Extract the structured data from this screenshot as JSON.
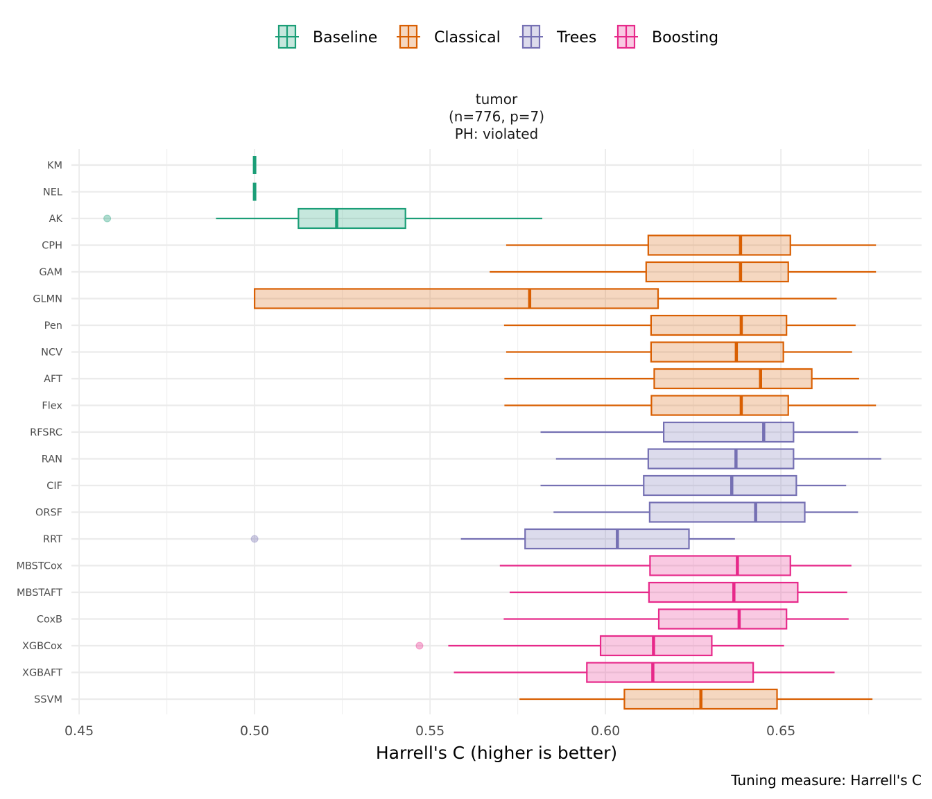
{
  "chart_data": {
    "type": "boxplot",
    "orientation": "horizontal",
    "title": [
      "tumor",
      "(n=776, p=7)",
      "PH: violated"
    ],
    "xlabel": "Harrell's C (higher is better)",
    "ylabel": "",
    "caption": "Tuning measure: Harrell's C",
    "xlim": [
      0.4478,
      0.6901
    ],
    "x_ticks": [
      0.45,
      0.5,
      0.55,
      0.6,
      0.65
    ],
    "x_tick_labels": [
      "0.45",
      "0.50",
      "0.55",
      "0.60",
      "0.65"
    ],
    "x_minor_ticks": [
      0.475,
      0.525,
      0.575,
      0.625,
      0.675
    ],
    "grid": true,
    "legend": {
      "position": "top",
      "entries": [
        {
          "name": "Baseline",
          "color": "#1b9e77"
        },
        {
          "name": "Classical",
          "color": "#d95f02"
        },
        {
          "name": "Trees",
          "color": "#7570b3"
        },
        {
          "name": "Boosting",
          "color": "#e7298a"
        }
      ]
    },
    "categories": [
      "KM",
      "NEL",
      "AK",
      "CPH",
      "GAM",
      "GLMN",
      "Pen",
      "NCV",
      "AFT",
      "Flex",
      "RFSRC",
      "RAN",
      "CIF",
      "ORSF",
      "RRT",
      "MBSTCox",
      "MBSTAFT",
      "CoxB",
      "XGBCox",
      "XGBAFT",
      "SSVM"
    ],
    "series": [
      {
        "label": "KM",
        "group": "Baseline",
        "whisker_low": 0.5,
        "q1": 0.5,
        "median": 0.5,
        "q3": 0.5,
        "whisker_high": 0.5,
        "outliers": []
      },
      {
        "label": "NEL",
        "group": "Baseline",
        "whisker_low": 0.5,
        "q1": 0.5,
        "median": 0.5,
        "q3": 0.5,
        "whisker_high": 0.5,
        "outliers": []
      },
      {
        "label": "AK",
        "group": "Baseline",
        "whisker_low": 0.489,
        "q1": 0.5125,
        "median": 0.5234,
        "q3": 0.543,
        "whisker_high": 0.582,
        "outliers": [
          0.458
        ]
      },
      {
        "label": "CPH",
        "group": "Classical",
        "whisker_low": 0.5717,
        "q1": 0.6122,
        "median": 0.6385,
        "q3": 0.6527,
        "whisker_high": 0.6771,
        "outliers": []
      },
      {
        "label": "GAM",
        "group": "Classical",
        "whisker_low": 0.567,
        "q1": 0.6116,
        "median": 0.6385,
        "q3": 0.6521,
        "whisker_high": 0.6771,
        "outliers": []
      },
      {
        "label": "GLMN",
        "group": "Classical",
        "whisker_low": 0.5,
        "q1": 0.5,
        "median": 0.5784,
        "q3": 0.615,
        "whisker_high": 0.6659,
        "outliers": []
      },
      {
        "label": "Pen",
        "group": "Classical",
        "whisker_low": 0.5711,
        "q1": 0.613,
        "median": 0.6387,
        "q3": 0.6516,
        "whisker_high": 0.6713,
        "outliers": []
      },
      {
        "label": "NCV",
        "group": "Classical",
        "whisker_low": 0.5717,
        "q1": 0.613,
        "median": 0.6373,
        "q3": 0.6507,
        "whisker_high": 0.6703,
        "outliers": []
      },
      {
        "label": "AFT",
        "group": "Classical",
        "whisker_low": 0.5712,
        "q1": 0.6139,
        "median": 0.6442,
        "q3": 0.6588,
        "whisker_high": 0.6723,
        "outliers": []
      },
      {
        "label": "Flex",
        "group": "Classical",
        "whisker_low": 0.5712,
        "q1": 0.6131,
        "median": 0.6387,
        "q3": 0.6521,
        "whisker_high": 0.6771,
        "outliers": []
      },
      {
        "label": "RFSRC",
        "group": "Trees",
        "whisker_low": 0.5815,
        "q1": 0.6166,
        "median": 0.6451,
        "q3": 0.6536,
        "whisker_high": 0.672,
        "outliers": []
      },
      {
        "label": "RAN",
        "group": "Trees",
        "whisker_low": 0.5859,
        "q1": 0.6122,
        "median": 0.6372,
        "q3": 0.6536,
        "whisker_high": 0.6786,
        "outliers": []
      },
      {
        "label": "CIF",
        "group": "Trees",
        "whisker_low": 0.5815,
        "q1": 0.6109,
        "median": 0.636,
        "q3": 0.6544,
        "whisker_high": 0.6686,
        "outliers": []
      },
      {
        "label": "ORSF",
        "group": "Trees",
        "whisker_low": 0.5852,
        "q1": 0.6126,
        "median": 0.6428,
        "q3": 0.6568,
        "whisker_high": 0.672,
        "outliers": []
      },
      {
        "label": "RRT",
        "group": "Trees",
        "whisker_low": 0.5588,
        "q1": 0.5771,
        "median": 0.6034,
        "q3": 0.6238,
        "whisker_high": 0.6369,
        "outliers": [
          0.5
        ]
      },
      {
        "label": "MBSTCox",
        "group": "Boosting",
        "whisker_low": 0.5699,
        "q1": 0.6127,
        "median": 0.6376,
        "q3": 0.6527,
        "whisker_high": 0.6701,
        "outliers": []
      },
      {
        "label": "MBSTAFT",
        "group": "Boosting",
        "whisker_low": 0.5727,
        "q1": 0.6124,
        "median": 0.6366,
        "q3": 0.6548,
        "whisker_high": 0.6689,
        "outliers": []
      },
      {
        "label": "CoxB",
        "group": "Boosting",
        "whisker_low": 0.571,
        "q1": 0.6152,
        "median": 0.6381,
        "q3": 0.6516,
        "whisker_high": 0.6693,
        "outliers": []
      },
      {
        "label": "XGBCox",
        "group": "Boosting",
        "whisker_low": 0.5552,
        "q1": 0.5986,
        "median": 0.6137,
        "q3": 0.6303,
        "whisker_high": 0.6509,
        "outliers": [
          0.547
        ]
      },
      {
        "label": "XGBAFT",
        "group": "Boosting",
        "whisker_low": 0.5568,
        "q1": 0.5947,
        "median": 0.6135,
        "q3": 0.6421,
        "whisker_high": 0.6653,
        "outliers": []
      },
      {
        "label": "SSVM",
        "group": "Classical",
        "whisker_low": 0.5755,
        "q1": 0.6054,
        "median": 0.6272,
        "q3": 0.6489,
        "whisker_high": 0.6761,
        "outliers": []
      }
    ]
  }
}
